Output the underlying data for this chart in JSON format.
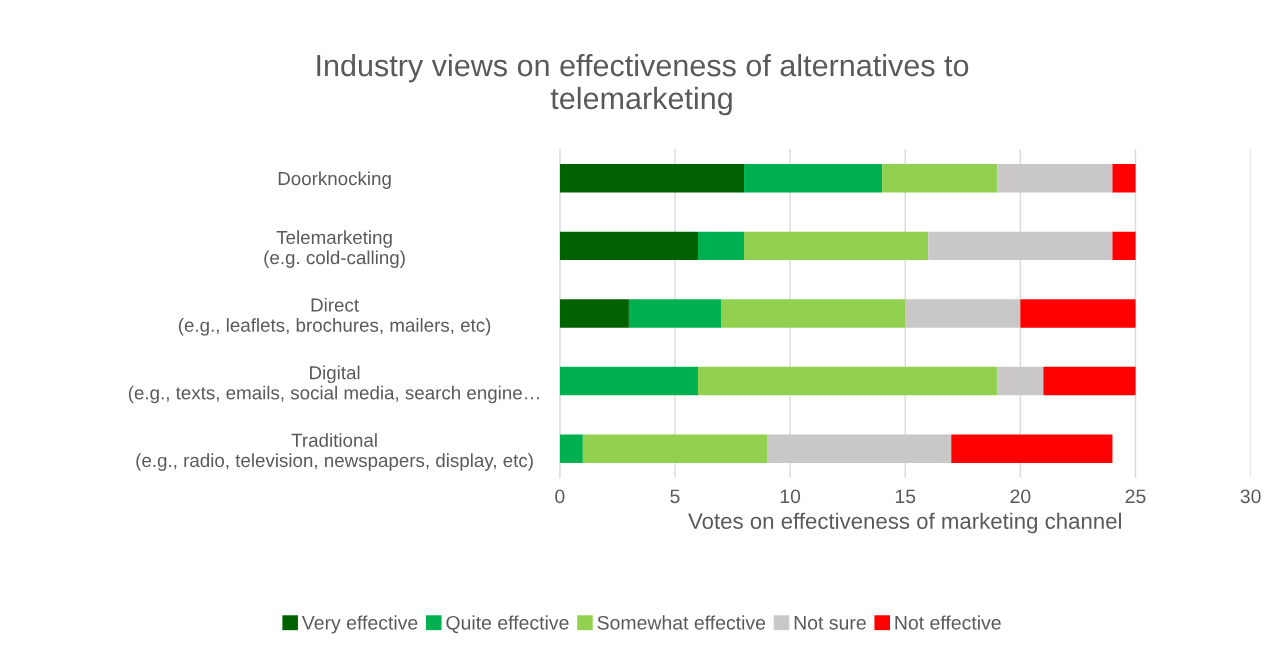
{
  "chart_data": {
    "type": "bar",
    "orientation": "horizontal",
    "stacked": true,
    "title": "Industry views on effectiveness of alternatives to\ntelemarketing",
    "xlabel": "Votes on effectiveness of marketing channel",
    "categories": [
      "Doorknocking",
      "Telemarketing\n(e.g. cold-calling)",
      "Direct\n(e.g., leaflets, brochures, mailers, etc)",
      "Digital\n(e.g., texts, emails, social media, search engine…",
      "Traditional\n(e.g., radio, television, newspapers, display, etc)"
    ],
    "series": [
      {
        "name": "Very effective",
        "color": "#006100",
        "values": [
          8,
          6,
          3,
          0,
          0
        ]
      },
      {
        "name": "Quite effective",
        "color": "#00b050",
        "values": [
          6,
          2,
          4,
          6,
          1
        ]
      },
      {
        "name": "Somewhat effective",
        "color": "#92d050",
        "values": [
          5,
          8,
          8,
          13,
          8
        ]
      },
      {
        "name": "Not sure",
        "color": "#c9c7c7",
        "values": [
          5,
          8,
          5,
          2,
          8
        ]
      },
      {
        "name": "Not effective",
        "color": "#ff0000",
        "values": [
          1,
          1,
          5,
          4,
          7
        ]
      }
    ],
    "xlim": [
      0,
      30
    ],
    "xticks": [
      0,
      5,
      10,
      15,
      20,
      25,
      30
    ],
    "grid": "x",
    "legend": "bottom"
  }
}
